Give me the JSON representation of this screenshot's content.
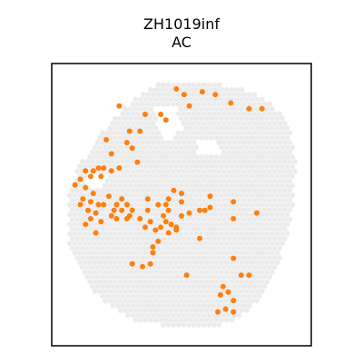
{
  "chart_data": {
    "type": "scatter",
    "title_lines": [
      "ZH1019inf",
      "AC"
    ],
    "xlabel": "",
    "ylabel": "",
    "xlim": [
      0,
      100
    ],
    "ylim": [
      0,
      100
    ],
    "grid": false,
    "colors": {
      "background_spots": "#ebebeb",
      "highlight": "#ff7f0e",
      "frame": "#000000"
    },
    "tissue_outline": [
      [
        40,
        93
      ],
      [
        62,
        93
      ],
      [
        78,
        90
      ],
      [
        88,
        83
      ],
      [
        93,
        73
      ],
      [
        94,
        62
      ],
      [
        93,
        50
      ],
      [
        90,
        36
      ],
      [
        84,
        22
      ],
      [
        76,
        12
      ],
      [
        65,
        7
      ],
      [
        50,
        6
      ],
      [
        32,
        9
      ],
      [
        19,
        16
      ],
      [
        11,
        27
      ],
      [
        6,
        38
      ],
      [
        6,
        52
      ],
      [
        10,
        63
      ],
      [
        17,
        72
      ],
      [
        23,
        80
      ],
      [
        31,
        87
      ]
    ],
    "tissue_holes": [
      [
        [
          40,
          84
        ],
        [
          48,
          84
        ],
        [
          50,
          77
        ],
        [
          46,
          72
        ],
        [
          41,
          76
        ]
      ],
      [
        [
          55,
          73
        ],
        [
          64,
          73
        ],
        [
          66,
          68
        ],
        [
          57,
          67
        ]
      ],
      [
        [
          14,
          61
        ],
        [
          22,
          61
        ],
        [
          20,
          55
        ],
        [
          13,
          56
        ]
      ]
    ],
    "highlight_points": [
      {
        "x": 48,
        "y": 91
      },
      {
        "x": 51,
        "y": 89
      },
      {
        "x": 58,
        "y": 90
      },
      {
        "x": 63,
        "y": 89
      },
      {
        "x": 69,
        "y": 86
      },
      {
        "x": 76,
        "y": 84
      },
      {
        "x": 81,
        "y": 84
      },
      {
        "x": 53,
        "y": 85
      },
      {
        "x": 26,
        "y": 85
      },
      {
        "x": 36,
        "y": 82
      },
      {
        "x": 42,
        "y": 82
      },
      {
        "x": 44,
        "y": 80
      },
      {
        "x": 34,
        "y": 76
      },
      {
        "x": 29,
        "y": 72
      },
      {
        "x": 30,
        "y": 76
      },
      {
        "x": 21,
        "y": 73
      },
      {
        "x": 31,
        "y": 70
      },
      {
        "x": 23,
        "y": 68
      },
      {
        "x": 20,
        "y": 63
      },
      {
        "x": 13,
        "y": 62
      },
      {
        "x": 16,
        "y": 62
      },
      {
        "x": 18,
        "y": 63
      },
      {
        "x": 11,
        "y": 59
      },
      {
        "x": 15,
        "y": 60
      },
      {
        "x": 19,
        "y": 60
      },
      {
        "x": 23,
        "y": 62
      },
      {
        "x": 26,
        "y": 63
      },
      {
        "x": 33,
        "y": 65
      },
      {
        "x": 9,
        "y": 57
      },
      {
        "x": 13,
        "y": 56
      },
      {
        "x": 16,
        "y": 54
      },
      {
        "x": 12,
        "y": 52
      },
      {
        "x": 15,
        "y": 51
      },
      {
        "x": 18,
        "y": 50
      },
      {
        "x": 11,
        "y": 50
      },
      {
        "x": 14,
        "y": 48
      },
      {
        "x": 17,
        "y": 47
      },
      {
        "x": 22,
        "y": 53
      },
      {
        "x": 20,
        "y": 50
      },
      {
        "x": 24,
        "y": 48
      },
      {
        "x": 19,
        "y": 44
      },
      {
        "x": 15,
        "y": 45
      },
      {
        "x": 13,
        "y": 43
      },
      {
        "x": 17,
        "y": 40
      },
      {
        "x": 23,
        "y": 46
      },
      {
        "x": 25,
        "y": 50
      },
      {
        "x": 27,
        "y": 52
      },
      {
        "x": 29,
        "y": 50
      },
      {
        "x": 27,
        "y": 48
      },
      {
        "x": 30,
        "y": 46
      },
      {
        "x": 25,
        "y": 45
      },
      {
        "x": 29,
        "y": 45
      },
      {
        "x": 31,
        "y": 48
      },
      {
        "x": 37,
        "y": 52
      },
      {
        "x": 37,
        "y": 48
      },
      {
        "x": 34,
        "y": 45
      },
      {
        "x": 41,
        "y": 50
      },
      {
        "x": 44,
        "y": 50
      },
      {
        "x": 38,
        "y": 44
      },
      {
        "x": 36,
        "y": 42
      },
      {
        "x": 40,
        "y": 41
      },
      {
        "x": 42,
        "y": 42
      },
      {
        "x": 41,
        "y": 37
      },
      {
        "x": 39,
        "y": 35
      },
      {
        "x": 39,
        "y": 33
      },
      {
        "x": 38,
        "y": 29
      },
      {
        "x": 31,
        "y": 29
      },
      {
        "x": 35,
        "y": 28
      },
      {
        "x": 43,
        "y": 46
      },
      {
        "x": 45,
        "y": 48
      },
      {
        "x": 44,
        "y": 44
      },
      {
        "x": 46,
        "y": 43
      },
      {
        "x": 48,
        "y": 42
      },
      {
        "x": 45,
        "y": 40
      },
      {
        "x": 50,
        "y": 51
      },
      {
        "x": 50,
        "y": 54
      },
      {
        "x": 47,
        "y": 55
      },
      {
        "x": 45,
        "y": 52
      },
      {
        "x": 50,
        "y": 46
      },
      {
        "x": 48,
        "y": 41
      },
      {
        "x": 53,
        "y": 47
      },
      {
        "x": 57,
        "y": 48
      },
      {
        "x": 59,
        "y": 48
      },
      {
        "x": 61,
        "y": 49
      },
      {
        "x": 61,
        "y": 53
      },
      {
        "x": 57,
        "y": 38
      },
      {
        "x": 70,
        "y": 51
      },
      {
        "x": 70,
        "y": 45
      },
      {
        "x": 79,
        "y": 47
      },
      {
        "x": 52,
        "y": 25
      },
      {
        "x": 70,
        "y": 31
      },
      {
        "x": 73,
        "y": 25
      },
      {
        "x": 66,
        "y": 21
      },
      {
        "x": 68,
        "y": 19
      },
      {
        "x": 65,
        "y": 18
      },
      {
        "x": 70,
        "y": 16
      },
      {
        "x": 67,
        "y": 13
      },
      {
        "x": 70,
        "y": 12
      },
      {
        "x": 64,
        "y": 12
      },
      {
        "x": 76,
        "y": 25
      }
    ]
  }
}
